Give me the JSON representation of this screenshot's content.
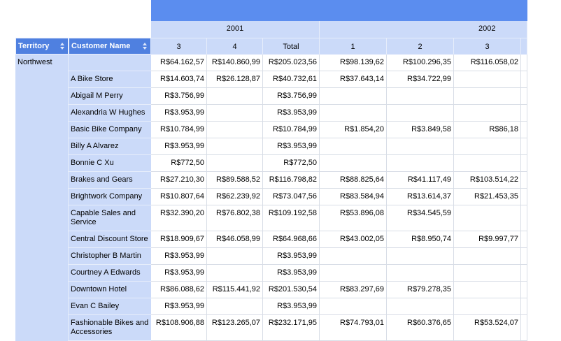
{
  "header": {
    "fields": [
      "Territory",
      "Customer Name"
    ],
    "years": [
      {
        "label": "2001",
        "quarters": [
          "3",
          "4",
          "Total"
        ]
      },
      {
        "label": "2002",
        "quarters": [
          "1",
          "2",
          "3"
        ]
      }
    ]
  },
  "rows": [
    {
      "territory": "Northwest",
      "customer": null,
      "cells": [
        "R$64.162,57",
        "R$140.860,99",
        "R$205.023,56",
        "R$98.139,62",
        "R$100.296,35",
        "R$116.058,02"
      ]
    },
    {
      "customer": "A Bike Store",
      "cells": [
        "R$14.603,74",
        "R$26.128,87",
        "R$40.732,61",
        "R$37.643,14",
        "R$34.722,99",
        null
      ]
    },
    {
      "customer": "Abigail M Perry",
      "cells": [
        "R$3.756,99",
        null,
        "R$3.756,99",
        null,
        null,
        null
      ]
    },
    {
      "customer": "Alexandria W Hughes",
      "cells": [
        "R$3.953,99",
        null,
        "R$3.953,99",
        null,
        null,
        null
      ]
    },
    {
      "customer": "Basic Bike Company",
      "cells": [
        "R$10.784,99",
        null,
        "R$10.784,99",
        "R$1.854,20",
        "R$3.849,58",
        "R$86,18"
      ]
    },
    {
      "customer": "Billy A Alvarez",
      "cells": [
        "R$3.953,99",
        null,
        "R$3.953,99",
        null,
        null,
        null
      ]
    },
    {
      "customer": "Bonnie C Xu",
      "cells": [
        "R$772,50",
        null,
        "R$772,50",
        null,
        null,
        null
      ]
    },
    {
      "customer": "Brakes and Gears",
      "cells": [
        "R$27.210,30",
        "R$89.588,52",
        "R$116.798,82",
        "R$88.825,64",
        "R$41.117,49",
        "R$103.514,22"
      ]
    },
    {
      "customer": "Brightwork Company",
      "cells": [
        "R$10.807,64",
        "R$62.239,92",
        "R$73.047,56",
        "R$83.584,94",
        "R$13.614,37",
        "R$21.453,35"
      ]
    },
    {
      "customer": "Capable Sales and Service",
      "cells": [
        "R$32.390,20",
        "R$76.802,38",
        "R$109.192,58",
        "R$53.896,08",
        "R$34.545,59",
        null
      ]
    },
    {
      "customer": "Central Discount Store",
      "cells": [
        "R$18.909,67",
        "R$46.058,99",
        "R$64.968,66",
        "R$43.002,05",
        "R$8.950,74",
        "R$9.997,77"
      ]
    },
    {
      "customer": "Christopher B Martin",
      "cells": [
        "R$3.953,99",
        null,
        "R$3.953,99",
        null,
        null,
        null
      ]
    },
    {
      "customer": "Courtney A Edwards",
      "cells": [
        "R$3.953,99",
        null,
        "R$3.953,99",
        null,
        null,
        null
      ]
    },
    {
      "customer": "Downtown Hotel",
      "cells": [
        "R$86.088,62",
        "R$115.441,92",
        "R$201.530,54",
        "R$83.297,69",
        "R$79.278,35",
        null
      ]
    },
    {
      "customer": "Evan C Bailey",
      "cells": [
        "R$3.953,99",
        null,
        "R$3.953,99",
        null,
        null,
        null
      ]
    },
    {
      "customer": "Fashionable Bikes and Accessories",
      "cells": [
        "R$108.906,88",
        "R$123.265,07",
        "R$232.171,95",
        "R$74.793,01",
        "R$60.376,65",
        "R$53.524,07"
      ]
    }
  ]
}
